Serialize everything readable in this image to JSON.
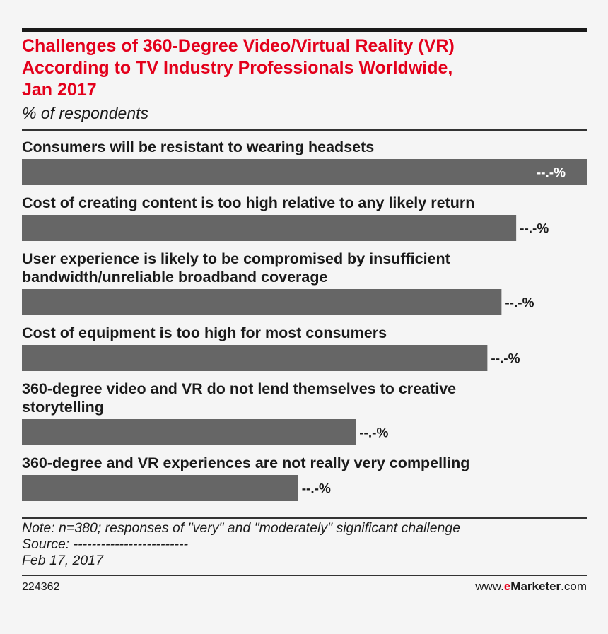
{
  "header": {
    "title_lines": [
      "Challenges of 360-Degree Video/Virtual Reality (VR)",
      "According to TV Industry Professionals Worldwide,",
      "Jan 2017"
    ],
    "subtitle": "% of respondents"
  },
  "chart_data": {
    "type": "bar",
    "orientation": "horizontal",
    "categories": [
      [
        "Consumers will be resistant to wearing headsets"
      ],
      [
        "Cost of creating content is too high relative to any likely return"
      ],
      [
        "User experience is likely to be compromised by insufficient",
        "bandwidth/unreliable broadband coverage"
      ],
      [
        "Cost of equipment is too high for most consumers"
      ],
      [
        "360-degree video and VR do not lend themselves to creative",
        "storytelling"
      ],
      [
        "360-degree and VR experiences are not really very compelling"
      ]
    ],
    "values": [
      100,
      87.5,
      84.9,
      82.4,
      59.1,
      48.9
    ],
    "value_labels": [
      "--.-%",
      "--.-%",
      "--.-%",
      "--.-%",
      "--.-%",
      "--.-%"
    ],
    "xlim": [
      0,
      100
    ],
    "bar_color": "#666666",
    "grid": false,
    "legend": "none"
  },
  "footer": {
    "note": "Note: n=380; responses of \"very\" and \"moderately\" significant challenge",
    "source": "Source: -------------------------",
    "date": "Feb 17, 2017",
    "chart_id": "224362",
    "brand_prefix": "www.",
    "brand_e": "e",
    "brand_name": "Marketer",
    "brand_suffix": ".com"
  },
  "colors": {
    "title": "#e3001b",
    "text": "#1a1a1a",
    "background": "#f5f5f5",
    "label_inside": "#ffffff"
  }
}
